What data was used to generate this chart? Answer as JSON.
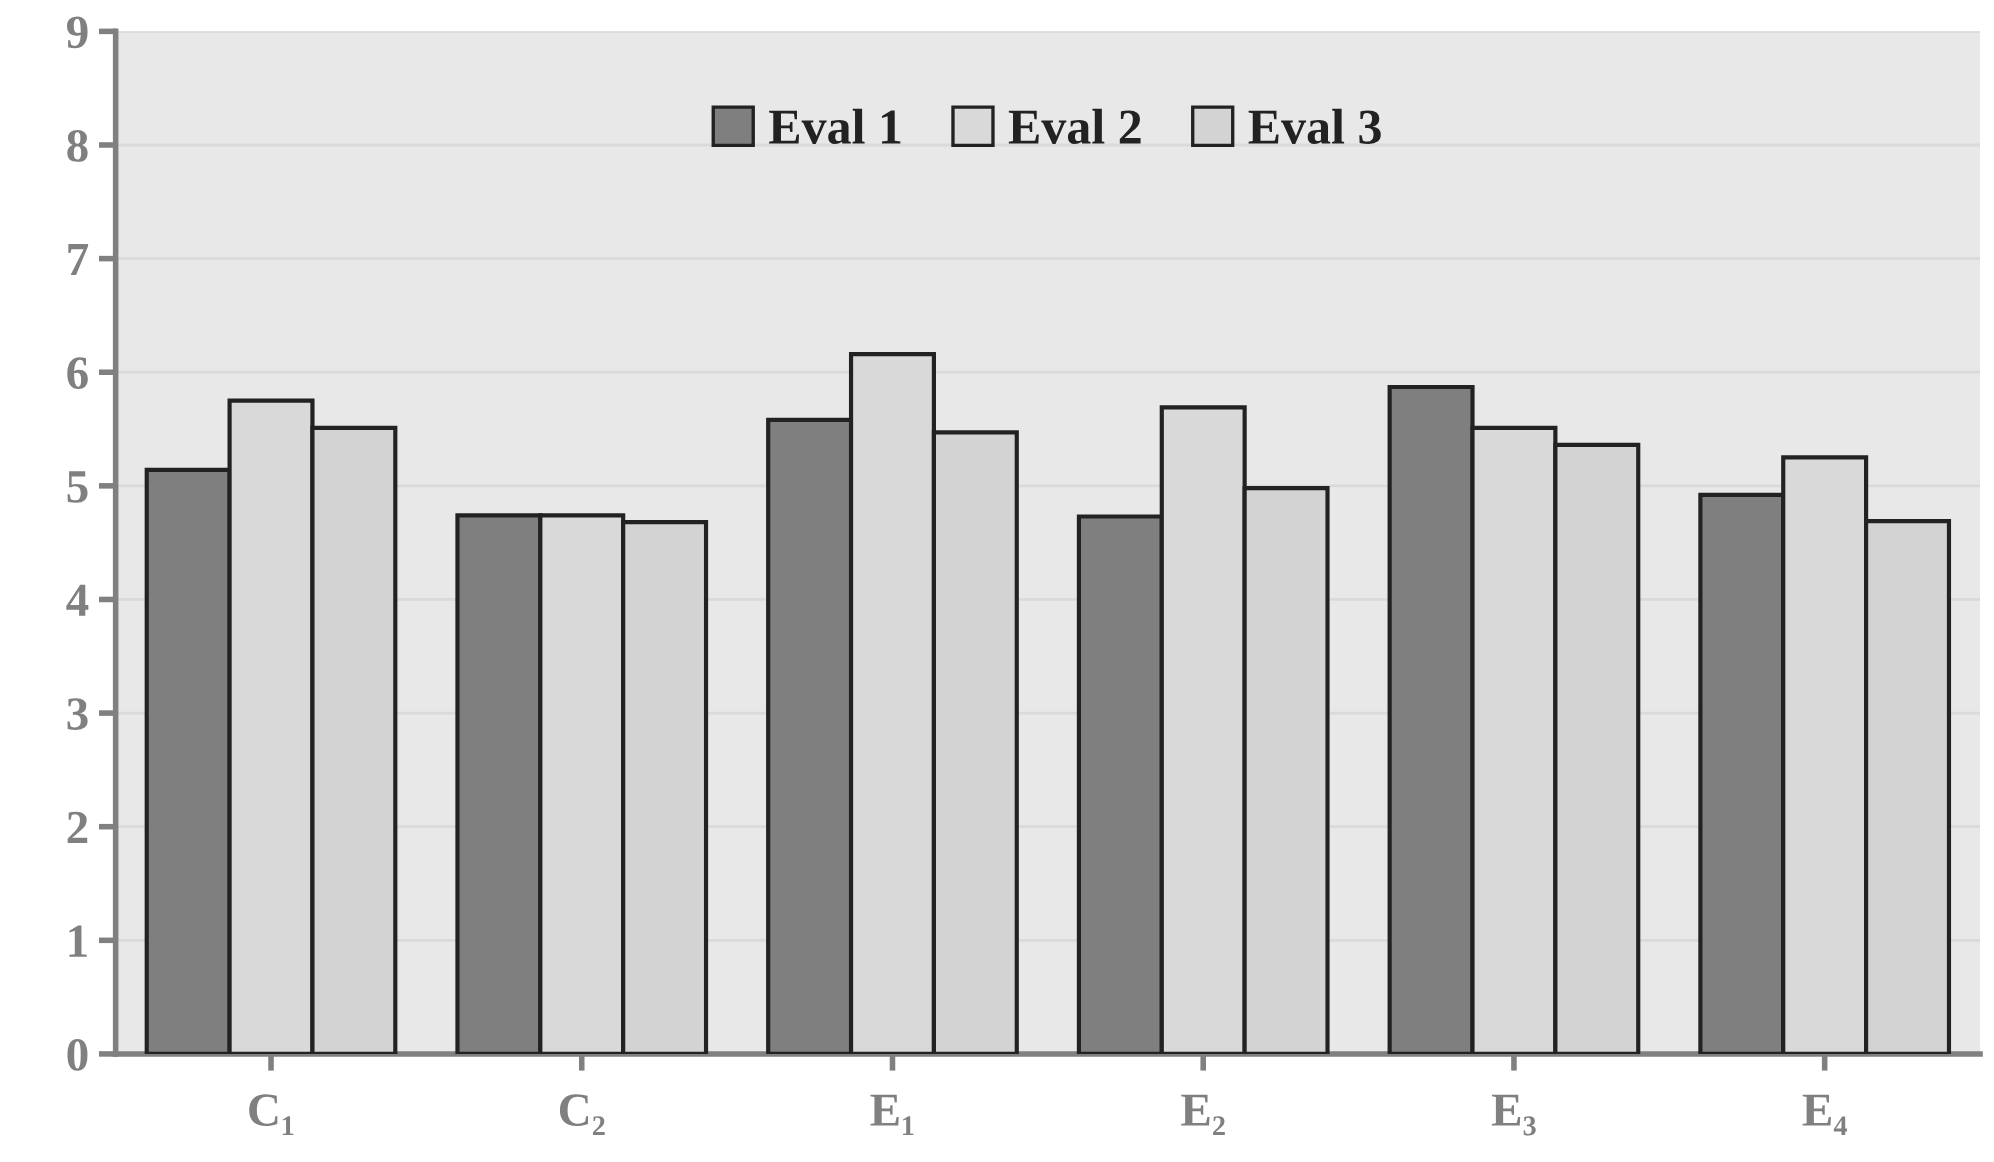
{
  "chart_data": {
    "type": "bar",
    "categories": [
      "C₁",
      "C₂",
      "E₁",
      "E₂",
      "E₃",
      "E₄"
    ],
    "series": [
      {
        "name": "Eval 1",
        "color": "#7f7f7f",
        "values": [
          5.14,
          4.74,
          5.58,
          4.73,
          5.87,
          4.92
        ]
      },
      {
        "name": "Eval 2",
        "color": "#d9d9d9",
        "values": [
          5.75,
          4.74,
          6.16,
          5.69,
          5.51,
          5.25
        ]
      },
      {
        "name": "Eval 3",
        "color": "#d3d3d3",
        "values": [
          5.51,
          4.68,
          5.47,
          4.98,
          5.36,
          4.69
        ]
      }
    ],
    "ylim": [
      0,
      9
    ],
    "yticks": [
      0,
      1,
      2,
      3,
      4,
      5,
      6,
      7,
      8,
      9
    ],
    "grid": "y",
    "legend": "top"
  }
}
